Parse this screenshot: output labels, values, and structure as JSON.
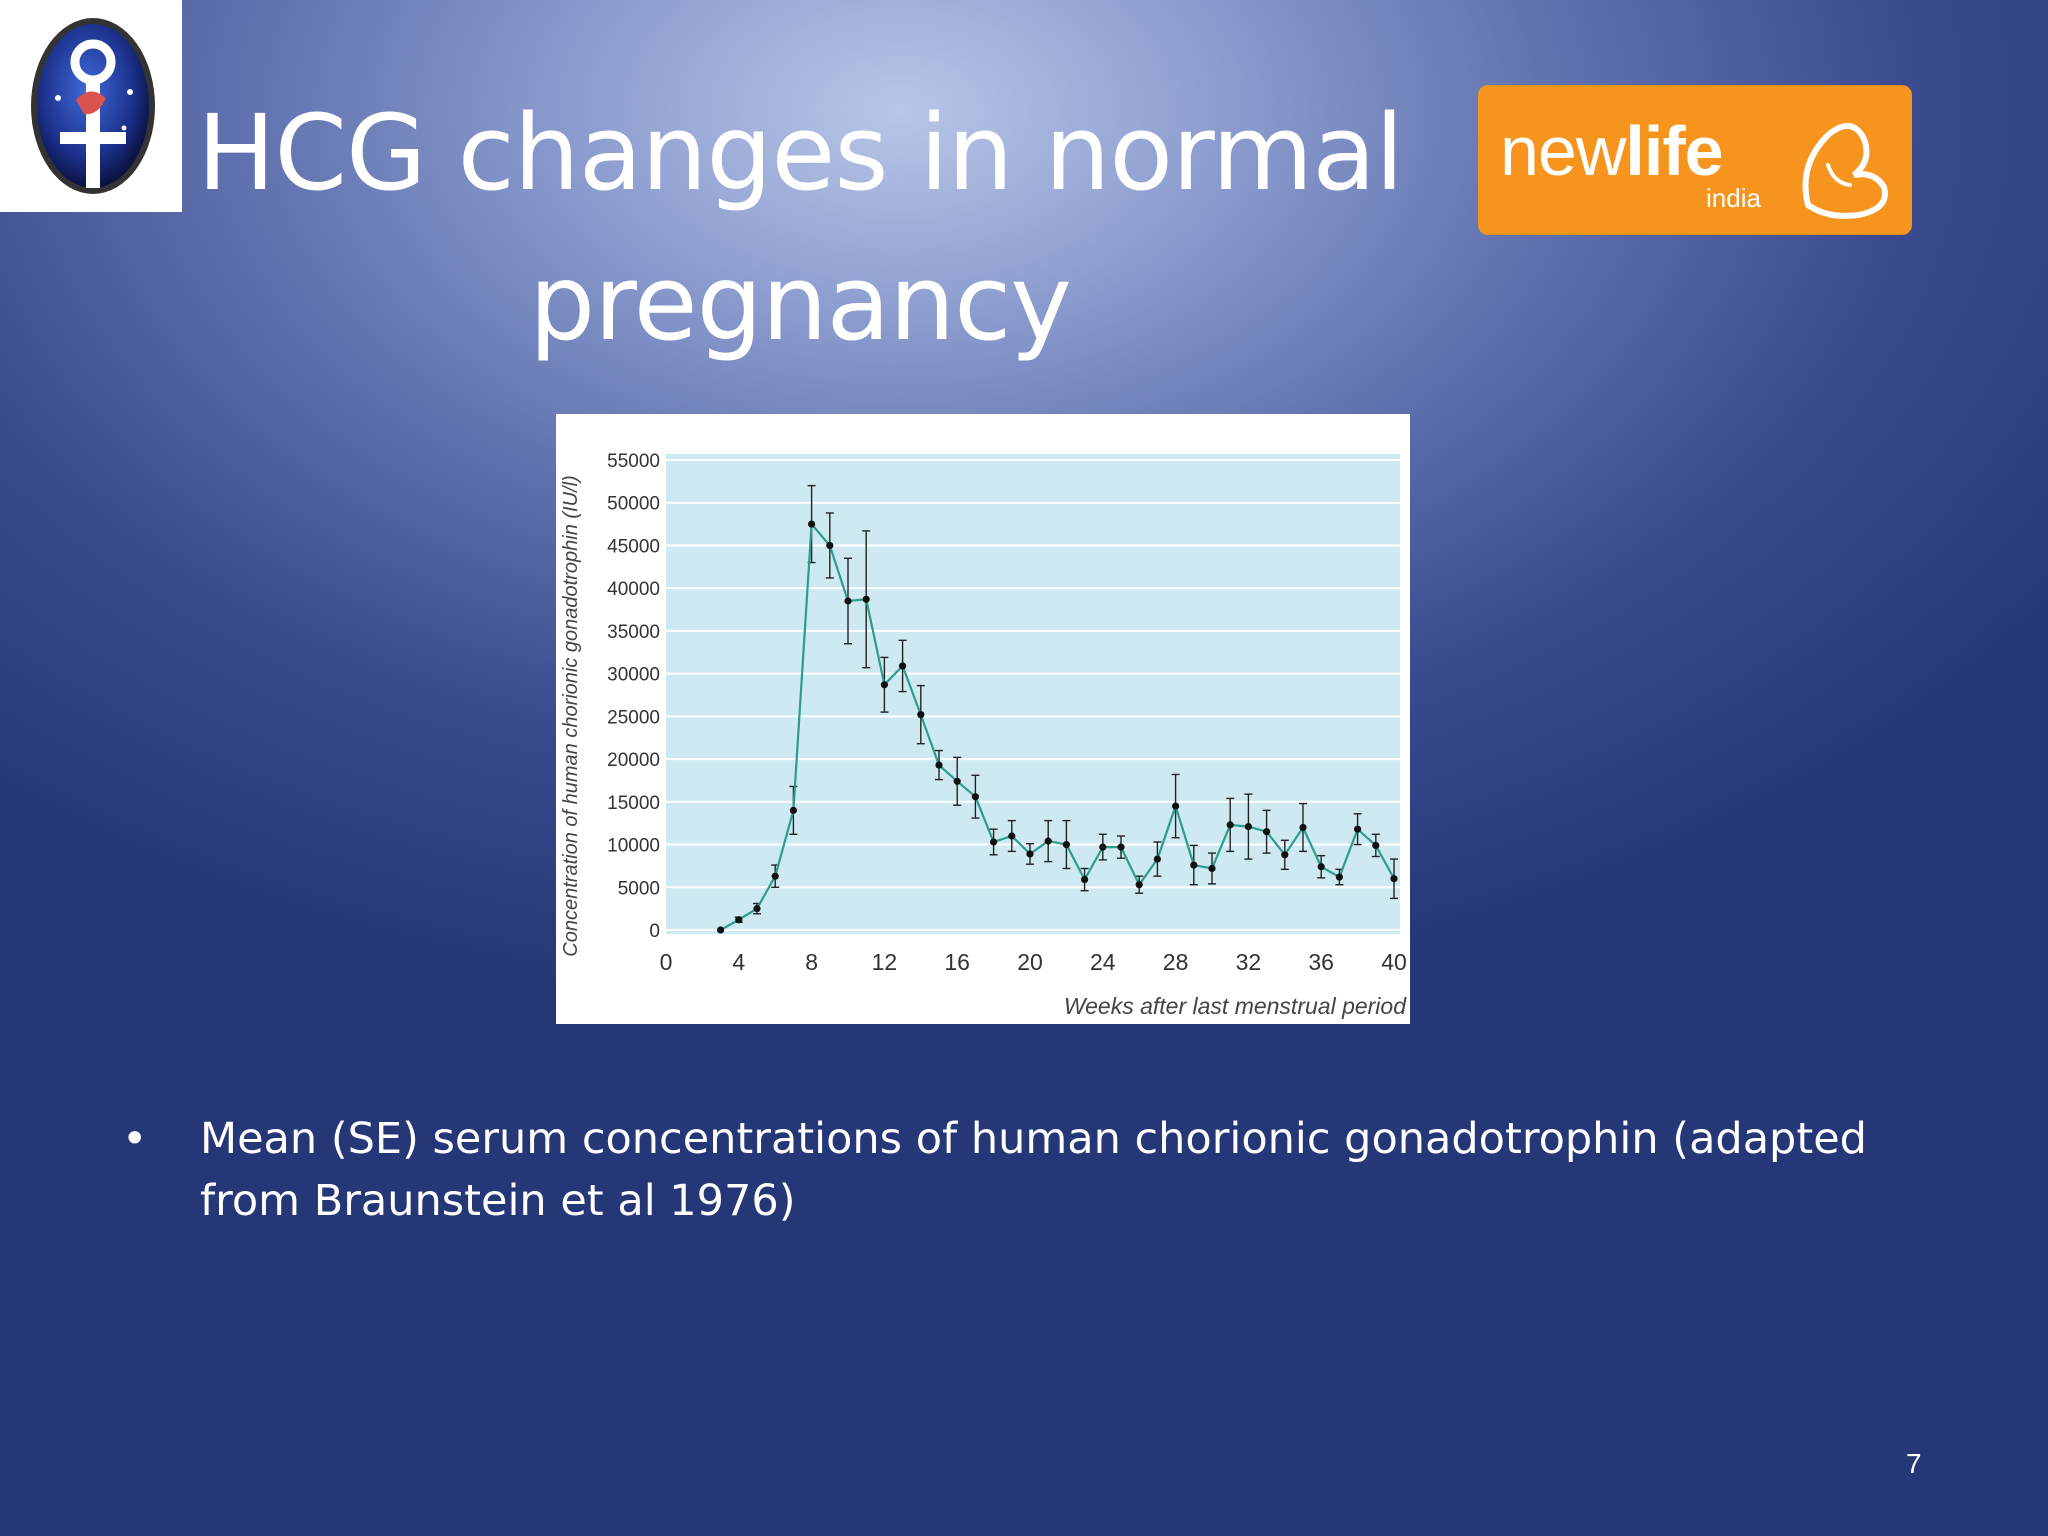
{
  "slide": {
    "title_line1": "HCG changes in normal",
    "title_line2": "pregnancy",
    "bullet_symbol": "•",
    "bullet_text": "Mean (SE) serum concentrations of human chorionic gonadotrophin (adapted from Braunstein et al 1976)",
    "page_number": "7"
  },
  "logos": {
    "left_logo_icon": "venus-symbol-emblem-icon",
    "right_logo": {
      "wordmark_regular": "new",
      "wordmark_bold": "life",
      "sub": "india",
      "color": "#f7941e"
    }
  },
  "chart_data": {
    "type": "line",
    "title": "",
    "xlabel": "Weeks after last menstrual period",
    "ylabel": "Concentration of human chorionic gonadotrophin (IU/l)",
    "xlim": [
      0,
      40
    ],
    "ylim": [
      0,
      55000
    ],
    "x_ticks": [
      "0",
      "4",
      "8",
      "12",
      "16",
      "20",
      "24",
      "28",
      "32",
      "36",
      "40"
    ],
    "y_ticks": [
      "0",
      "5000",
      "10000",
      "15000",
      "20000",
      "25000",
      "30000",
      "35000",
      "40000",
      "45000",
      "50000",
      "55000"
    ],
    "grid": true,
    "plot_background": "#cfe9f2",
    "line_color": "#2a9d8f",
    "series": [
      {
        "x": [
          3,
          4,
          5,
          6,
          7,
          8,
          9,
          10,
          11,
          12,
          13,
          14,
          15,
          16,
          17,
          18,
          19,
          20,
          21,
          22,
          23,
          24,
          25,
          26,
          27,
          28,
          29,
          30,
          31,
          32,
          33,
          34,
          35,
          36,
          37,
          38,
          39,
          40
        ],
        "y": [
          0,
          1200,
          2500,
          6300,
          14000,
          47500,
          45000,
          38500,
          38700,
          28700,
          30900,
          25200,
          19300,
          17400,
          15600,
          10300,
          11000,
          8900,
          10400,
          10000,
          5900,
          9700,
          9700,
          5300,
          8300,
          14500,
          7600,
          7200,
          12300,
          12100,
          11500,
          8800,
          12000,
          7400,
          6200,
          11800,
          9900,
          6000
        ],
        "error": [
          0,
          300,
          600,
          1300,
          2800,
          4500,
          3800,
          5000,
          8000,
          3200,
          3000,
          3400,
          1700,
          2800,
          2500,
          1500,
          1800,
          1200,
          2400,
          2800,
          1300,
          1500,
          1300,
          1000,
          2000,
          3700,
          2300,
          1800,
          3100,
          3800,
          2500,
          1700,
          2800,
          1300,
          900,
          1800,
          1300,
          2300
        ]
      }
    ]
  }
}
